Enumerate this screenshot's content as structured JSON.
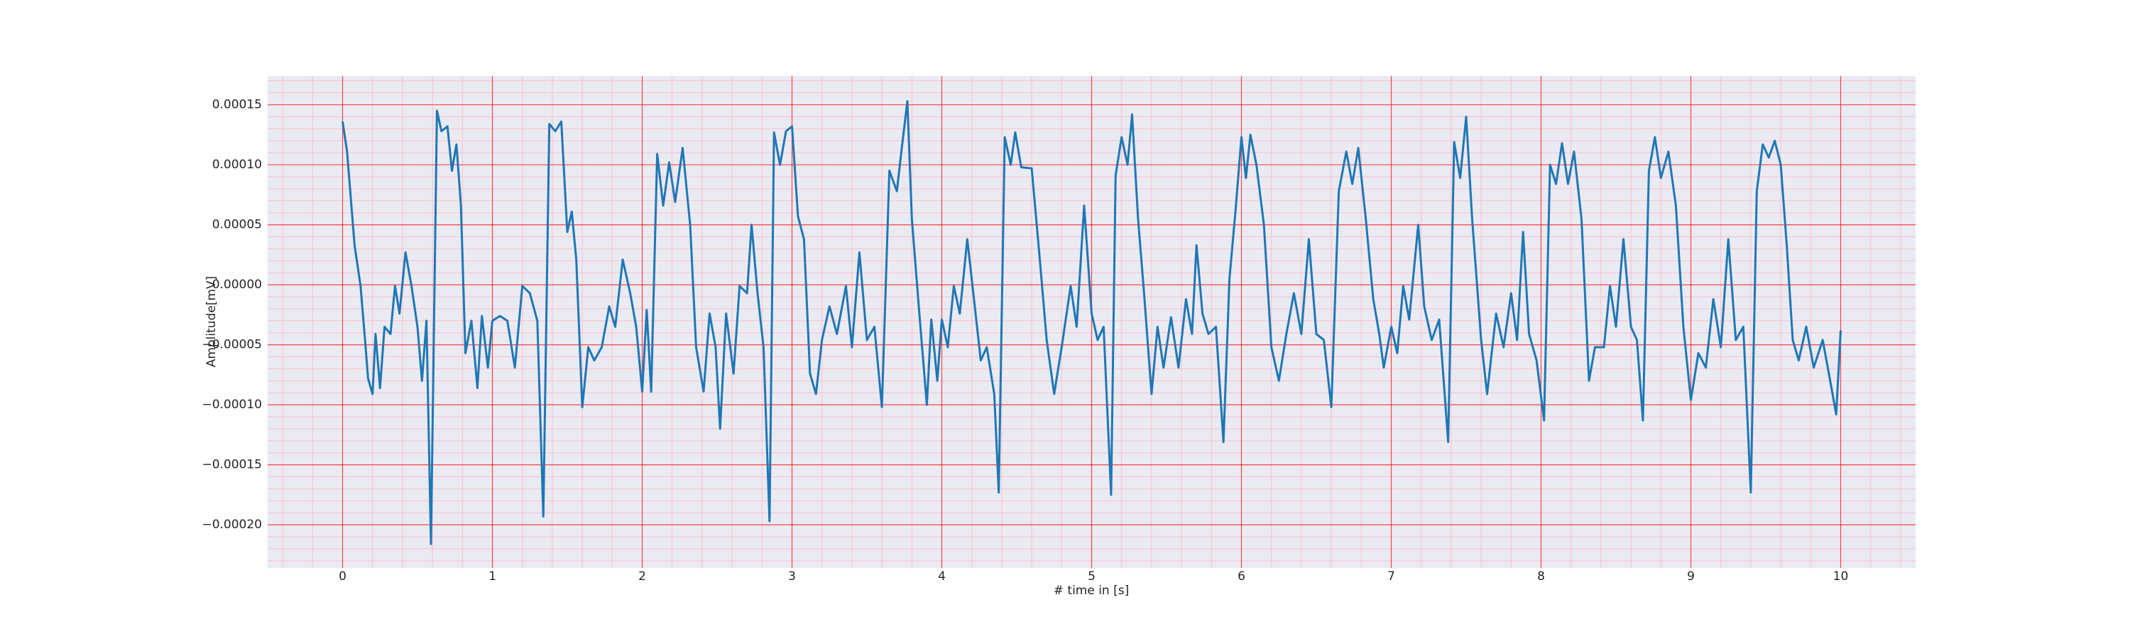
{
  "chart_data": {
    "type": "line",
    "x_label": "# time in [s]",
    "y_label": "Amplitude[mV]",
    "color": "#1f77b4",
    "grid_color": "#ff0000",
    "minor_grid_color": "#ffb6c1",
    "background": "#eaeaf2",
    "grid": true,
    "minor_grid": true,
    "xlim": [
      -0.5,
      10.5
    ],
    "ylim": [
      -0.000236,
      0.000174
    ],
    "xticks": [
      0,
      1,
      2,
      3,
      4,
      5,
      6,
      7,
      8,
      9,
      10
    ],
    "yticks": [
      {
        "value": -0.0002,
        "label": "−0.00020"
      },
      {
        "value": -0.00015,
        "label": "−0.00015"
      },
      {
        "value": -0.0001,
        "label": "−0.00010"
      },
      {
        "value": -5e-05,
        "label": "−0.00005"
      },
      {
        "value": 0,
        "label": "0.00000"
      },
      {
        "value": 5e-05,
        "label": "0.00005"
      },
      {
        "value": 0.0001,
        "label": "0.00010"
      },
      {
        "value": 0.00015,
        "label": "0.00015"
      }
    ],
    "x": [
      0,
      0.03,
      0.08,
      0.12,
      0.15,
      0.17,
      0.2,
      0.22,
      0.25,
      0.28,
      0.32,
      0.35,
      0.38,
      0.42,
      0.46,
      0.5,
      0.53,
      0.56,
      0.59,
      0.63,
      0.66,
      0.7,
      0.73,
      0.76,
      0.79,
      0.82,
      0.86,
      0.9,
      0.93,
      0.97,
      1.0,
      1.05,
      1.1,
      1.15,
      1.2,
      1.25,
      1.3,
      1.34,
      1.38,
      1.42,
      1.46,
      1.5,
      1.53,
      1.56,
      1.6,
      1.64,
      1.68,
      1.73,
      1.78,
      1.82,
      1.87,
      1.92,
      1.96,
      2.0,
      2.03,
      2.06,
      2.1,
      2.14,
      2.18,
      2.22,
      2.27,
      2.32,
      2.36,
      2.41,
      2.45,
      2.49,
      2.52,
      2.56,
      2.61,
      2.65,
      2.7,
      2.73,
      2.77,
      2.81,
      2.85,
      2.88,
      2.92,
      2.96,
      3.0,
      3.04,
      3.08,
      3.12,
      3.16,
      3.2,
      3.25,
      3.3,
      3.36,
      3.4,
      3.45,
      3.5,
      3.55,
      3.6,
      3.65,
      3.7,
      3.73,
      3.77,
      3.8,
      3.85,
      3.9,
      3.93,
      3.97,
      4.0,
      4.04,
      4.08,
      4.12,
      4.17,
      4.22,
      4.26,
      4.3,
      4.35,
      4.38,
      4.42,
      4.46,
      4.49,
      4.53,
      4.6,
      4.65,
      4.7,
      4.75,
      4.8,
      4.86,
      4.9,
      4.95,
      5.0,
      5.04,
      5.08,
      5.13,
      5.16,
      5.2,
      5.24,
      5.27,
      5.31,
      5.35,
      5.4,
      5.44,
      5.48,
      5.53,
      5.58,
      5.63,
      5.67,
      5.7,
      5.74,
      5.78,
      5.83,
      5.88,
      5.92,
      5.96,
      6.0,
      6.03,
      6.06,
      6.1,
      6.15,
      6.2,
      6.25,
      6.3,
      6.35,
      6.4,
      6.45,
      6.5,
      6.55,
      6.6,
      6.65,
      6.7,
      6.74,
      6.78,
      6.83,
      6.88,
      6.92,
      6.95,
      7.0,
      7.04,
      7.08,
      7.12,
      7.18,
      7.22,
      7.27,
      7.32,
      7.38,
      7.42,
      7.46,
      7.5,
      7.54,
      7.6,
      7.64,
      7.7,
      7.75,
      7.8,
      7.84,
      7.88,
      7.92,
      7.97,
      8.02,
      8.06,
      8.1,
      8.14,
      8.18,
      8.22,
      8.27,
      8.32,
      8.36,
      8.42,
      8.46,
      8.5,
      8.55,
      8.6,
      8.64,
      8.68,
      8.72,
      8.76,
      8.8,
      8.85,
      8.9,
      8.95,
      9.0,
      9.05,
      9.1,
      9.15,
      9.2,
      9.25,
      9.3,
      9.35,
      9.4,
      9.44,
      9.48,
      9.52,
      9.56,
      9.6,
      9.64,
      9.68,
      9.72,
      9.77,
      9.82,
      9.88,
      9.93,
      9.97,
      10.0
    ],
    "values": [
      0.000136,
      0.000111,
      3.3e-05,
      -1e-06,
      -4.6e-05,
      -7.8e-05,
      -9.1e-05,
      -4.1e-05,
      -8.6e-05,
      -3.5e-05,
      -4.1e-05,
      -1e-06,
      -2.4e-05,
      2.7e-05,
      -1e-06,
      -3.5e-05,
      -8e-05,
      -3e-05,
      -0.000216,
      0.000145,
      0.000128,
      0.000132,
      9.5e-05,
      0.000117,
      6.6e-05,
      -5.7e-05,
      -3e-05,
      -8.6e-05,
      -2.6e-05,
      -6.9e-05,
      -3e-05,
      -2.6e-05,
      -3e-05,
      -6.9e-05,
      -1e-06,
      -7e-06,
      -3e-05,
      -0.000193,
      0.000134,
      0.000128,
      0.000136,
      4.4e-05,
      6.1e-05,
      2.1e-05,
      -0.000102,
      -5.2e-05,
      -6.3e-05,
      -5.2e-05,
      -1.8e-05,
      -3.5e-05,
      2.1e-05,
      -7e-06,
      -3.5e-05,
      -8.9e-05,
      -2.1e-05,
      -8.9e-05,
      0.000109,
      6.6e-05,
      0.000102,
      6.9e-05,
      0.000114,
      5e-05,
      -5.2e-05,
      -8.9e-05,
      -2.4e-05,
      -5.2e-05,
      -0.00012,
      -2.4e-05,
      -7.4e-05,
      -1e-06,
      -7e-06,
      5e-05,
      -7e-06,
      -5.2e-05,
      -0.000197,
      0.000127,
      0.0001,
      0.000128,
      0.000132,
      5.7e-05,
      3.8e-05,
      -7.4e-05,
      -9.1e-05,
      -4.6e-05,
      -1.8e-05,
      -4.1e-05,
      -1e-06,
      -5.2e-05,
      2.7e-05,
      -4.6e-05,
      -3.5e-05,
      -0.000102,
      9.5e-05,
      7.8e-05,
      0.000111,
      0.000153,
      5.5e-05,
      -2.4e-05,
      -0.0001,
      -2.9e-05,
      -8e-05,
      -2.9e-05,
      -5.2e-05,
      -1e-06,
      -2.4e-05,
      3.8e-05,
      -1.8e-05,
      -6.3e-05,
      -5.2e-05,
      -9.1e-05,
      -0.000173,
      0.000123,
      0.0001,
      0.000127,
      9.8e-05,
      9.7e-05,
      2.7e-05,
      -4.6e-05,
      -9.1e-05,
      -5.2e-05,
      -1e-06,
      -3.5e-05,
      6.6e-05,
      -2.4e-05,
      -4.6e-05,
      -3.5e-05,
      -0.000175,
      9.1e-05,
      0.000123,
      0.0001,
      0.000142,
      5.5e-05,
      -7e-06,
      -9.1e-05,
      -3.5e-05,
      -6.9e-05,
      -2.7e-05,
      -6.9e-05,
      -1.2e-05,
      -4.1e-05,
      3.3e-05,
      -2.4e-05,
      -4.1e-05,
      -3.5e-05,
      -0.000131,
      5e-06,
      6.1e-05,
      0.000123,
      8.9e-05,
      0.000125,
      0.0001,
      5e-05,
      -5.2e-05,
      -8e-05,
      -4.1e-05,
      -7e-06,
      -4.1e-05,
      3.8e-05,
      -4.1e-05,
      -4.6e-05,
      -0.000102,
      7.8e-05,
      0.000111,
      8.4e-05,
      0.000114,
      5.5e-05,
      -1.2e-05,
      -4.1e-05,
      -6.9e-05,
      -3.5e-05,
      -5.7e-05,
      -1e-06,
      -2.9e-05,
      5e-05,
      -1.8e-05,
      -4.6e-05,
      -2.9e-05,
      -0.000131,
      0.000119,
      8.9e-05,
      0.00014,
      5.5e-05,
      -4.6e-05,
      -9.1e-05,
      -2.4e-05,
      -5.2e-05,
      -7e-06,
      -4.6e-05,
      4.4e-05,
      -4.1e-05,
      -6.3e-05,
      -0.000113,
      0.0001,
      8.4e-05,
      0.000118,
      8.4e-05,
      0.000111,
      5.5e-05,
      -8e-05,
      -5.2e-05,
      -5.2e-05,
      -1e-06,
      -3.5e-05,
      3.8e-05,
      -3.5e-05,
      -4.6e-05,
      -0.000113,
      9.5e-05,
      0.000123,
      8.9e-05,
      0.000111,
      6.6e-05,
      -3.5e-05,
      -9.6e-05,
      -5.7e-05,
      -6.9e-05,
      -1.2e-05,
      -5.2e-05,
      3.8e-05,
      -4.6e-05,
      -3.5e-05,
      -0.000173,
      7.8e-05,
      0.000117,
      0.000106,
      0.00012,
      0.0001,
      3.3e-05,
      -4.6e-05,
      -6.3e-05,
      -3.5e-05,
      -6.9e-05,
      -4.6e-05,
      -8e-05,
      -0.000108,
      -3.8e-05
    ]
  }
}
